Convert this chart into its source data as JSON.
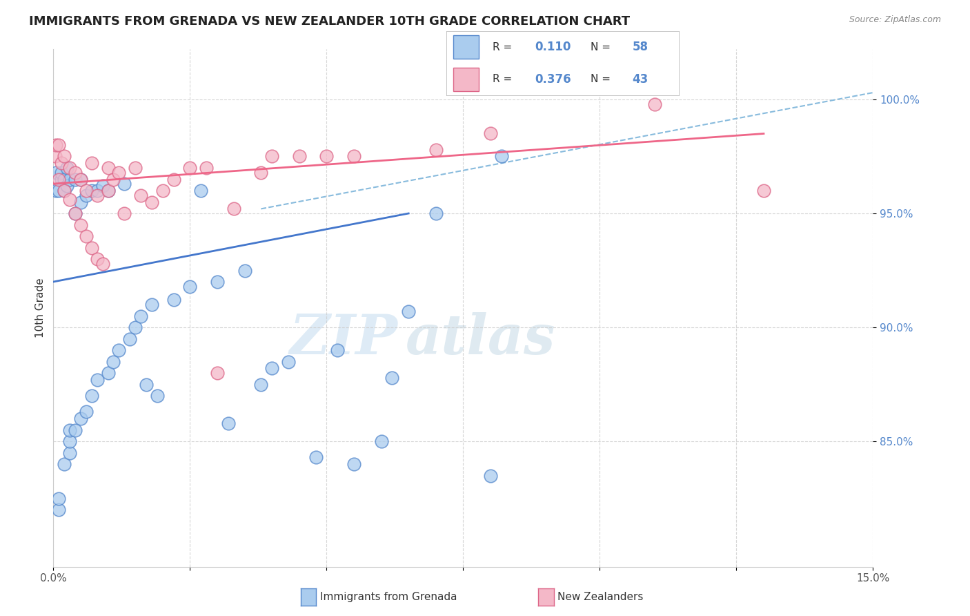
{
  "title": "IMMIGRANTS FROM GRENADA VS NEW ZEALANDER 10TH GRADE CORRELATION CHART",
  "source": "Source: ZipAtlas.com",
  "ylabel": "10th Grade",
  "xmin": 0.0,
  "xmax": 0.15,
  "ymin": 0.795,
  "ymax": 1.022,
  "legend_R1": "0.110",
  "legend_N1": "58",
  "legend_R2": "0.376",
  "legend_N2": "43",
  "color_blue_fill": "#aaccee",
  "color_blue_edge": "#5588cc",
  "color_pink_fill": "#f4b8c8",
  "color_pink_edge": "#dd6688",
  "color_blue_line": "#4477cc",
  "color_pink_line": "#ee6688",
  "color_dashed": "#88bbdd",
  "watermark_zip": "ZIP",
  "watermark_atlas": "atlas",
  "background_color": "#ffffff",
  "scatter_blue_x": [
    0.0005,
    0.0005,
    0.001,
    0.001,
    0.001,
    0.0015,
    0.0015,
    0.002,
    0.002,
    0.002,
    0.0025,
    0.0025,
    0.003,
    0.003,
    0.003,
    0.003,
    0.004,
    0.004,
    0.004,
    0.005,
    0.005,
    0.005,
    0.006,
    0.006,
    0.007,
    0.007,
    0.008,
    0.008,
    0.009,
    0.01,
    0.01,
    0.011,
    0.012,
    0.013,
    0.014,
    0.015,
    0.016,
    0.017,
    0.018,
    0.019,
    0.022,
    0.025,
    0.027,
    0.03,
    0.032,
    0.035,
    0.038,
    0.04,
    0.043,
    0.048,
    0.052,
    0.055,
    0.06,
    0.062,
    0.065,
    0.07,
    0.08,
    0.082
  ],
  "scatter_blue_y": [
    0.96,
    0.968,
    0.82,
    0.825,
    0.96,
    0.965,
    0.968,
    0.84,
    0.96,
    0.965,
    0.962,
    0.97,
    0.845,
    0.85,
    0.855,
    0.965,
    0.855,
    0.95,
    0.965,
    0.86,
    0.955,
    0.965,
    0.863,
    0.958,
    0.87,
    0.96,
    0.877,
    0.96,
    0.962,
    0.88,
    0.96,
    0.885,
    0.89,
    0.963,
    0.895,
    0.9,
    0.905,
    0.875,
    0.91,
    0.87,
    0.912,
    0.918,
    0.96,
    0.92,
    0.858,
    0.925,
    0.875,
    0.882,
    0.885,
    0.843,
    0.89,
    0.84,
    0.85,
    0.878,
    0.907,
    0.95,
    0.835,
    0.975
  ],
  "scatter_pink_x": [
    0.0003,
    0.0005,
    0.001,
    0.001,
    0.0015,
    0.002,
    0.002,
    0.003,
    0.003,
    0.004,
    0.004,
    0.005,
    0.005,
    0.006,
    0.006,
    0.007,
    0.007,
    0.008,
    0.008,
    0.009,
    0.01,
    0.01,
    0.011,
    0.012,
    0.013,
    0.015,
    0.016,
    0.018,
    0.02,
    0.022,
    0.025,
    0.028,
    0.03,
    0.033,
    0.038,
    0.04,
    0.045,
    0.05,
    0.055,
    0.07,
    0.08,
    0.11,
    0.13
  ],
  "scatter_pink_y": [
    0.975,
    0.98,
    0.965,
    0.98,
    0.972,
    0.96,
    0.975,
    0.956,
    0.97,
    0.95,
    0.968,
    0.945,
    0.965,
    0.94,
    0.96,
    0.935,
    0.972,
    0.93,
    0.958,
    0.928,
    0.97,
    0.96,
    0.965,
    0.968,
    0.95,
    0.97,
    0.958,
    0.955,
    0.96,
    0.965,
    0.97,
    0.97,
    0.88,
    0.952,
    0.968,
    0.975,
    0.975,
    0.975,
    0.975,
    0.978,
    0.985,
    0.998,
    0.96
  ],
  "blue_line_x": [
    0.0,
    0.065
  ],
  "blue_line_y": [
    0.92,
    0.95
  ],
  "pink_line_x": [
    0.0,
    0.13
  ],
  "pink_line_y": [
    0.963,
    0.985
  ],
  "dashed_line_x": [
    0.038,
    0.15
  ],
  "dashed_line_y": [
    0.952,
    1.003
  ]
}
